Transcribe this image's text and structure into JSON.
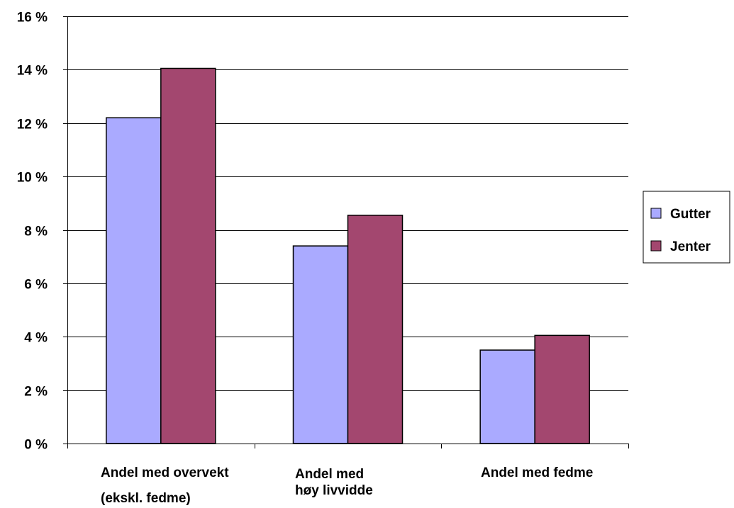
{
  "chart_data": {
    "type": "bar",
    "categories": [
      [
        "Andel med overvekt",
        "(ekskl. fedme)"
      ],
      [
        "Andel med",
        "høy livvidde"
      ],
      [
        "Andel med fedme"
      ]
    ],
    "series": [
      {
        "name": "Gutter",
        "values": [
          12.2,
          7.4,
          3.5
        ],
        "color": "#aaaaff"
      },
      {
        "name": "Jenter",
        "values": [
          14.05,
          8.55,
          4.05
        ],
        "color": "#a3476f"
      }
    ],
    "ylim": [
      0,
      16
    ],
    "yticks": [
      0,
      2,
      4,
      6,
      8,
      10,
      12,
      14,
      16
    ],
    "ytick_labels": [
      "0 %",
      "2 %",
      "4 %",
      "6 %",
      "8 %",
      "10 %",
      "12 %",
      "14 %",
      "16 %"
    ],
    "grid": true,
    "legend_position": "right"
  }
}
